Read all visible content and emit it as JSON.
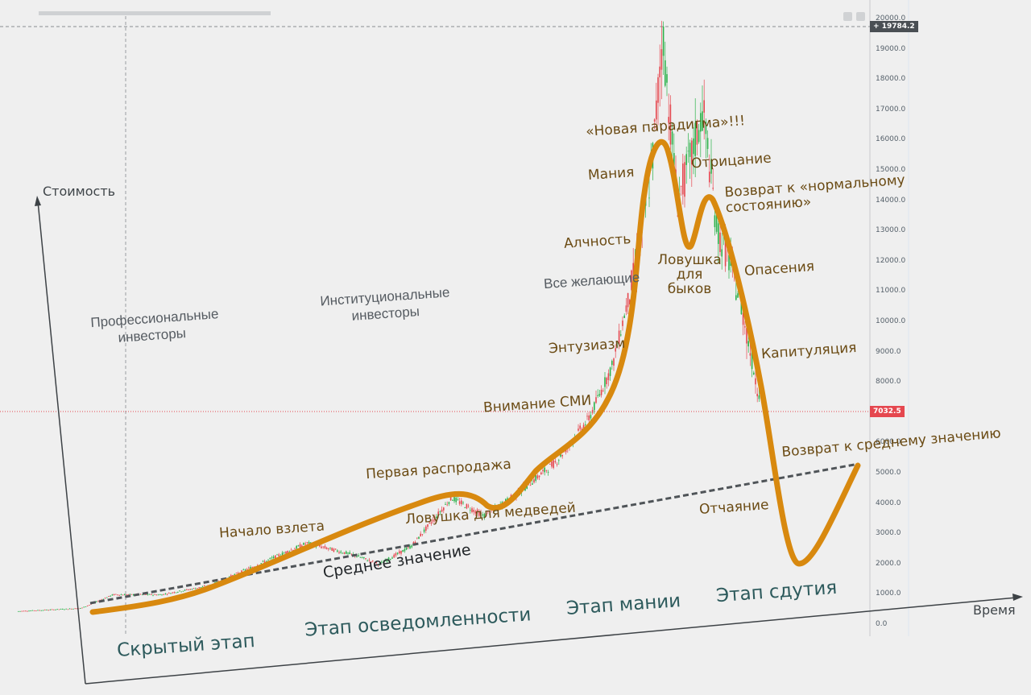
{
  "chart_data": {
    "type": "line",
    "ylim": [
      0,
      20000
    ],
    "y_ticks": [
      "0.0",
      "1000.0",
      "2000.0",
      "3000.0",
      "4000.0",
      "5000.0",
      "6000.0",
      "7000.0",
      "8000.0",
      "9000.0",
      "10000.0",
      "11000.0",
      "12000.0",
      "13000.0",
      "14000.0",
      "15000.0",
      "16000.0",
      "17000.0",
      "18000.0",
      "19000.0",
      "20000.0"
    ],
    "top_price": "19784.2",
    "current_price": "7032.5",
    "axis_labels": {
      "y": "Стоимость",
      "x": "Время"
    },
    "investor_groups": [
      "Профессиональные инвесторы",
      "Институциональные инвесторы",
      "Все желающие"
    ],
    "mean_line_label": "Среднее значение",
    "phases": [
      "Скрытый этап",
      "Этап осведомленности",
      "Этап мании",
      "Этап сдутия"
    ],
    "cycle_points": [
      {
        "label": "Начало взлета",
        "value": 2500
      },
      {
        "label": "Первая распродажа",
        "value": 4300
      },
      {
        "label": "Ловушка для медведей",
        "value": 3900
      },
      {
        "label": "Внимание СМИ",
        "value": 7000
      },
      {
        "label": "Энтузиазм",
        "value": 9200
      },
      {
        "label": "Алчность",
        "value": 13000
      },
      {
        "label": "Мания",
        "value": 15000
      },
      {
        "label": "«Новая парадигма»!!!",
        "value": 15900
      },
      {
        "label": "Ловушка для быков",
        "value": 12500
      },
      {
        "label": "Отрицание",
        "value": 14600
      },
      {
        "label": "Возврат к «нормальному состоянию»",
        "value": 14100
      },
      {
        "label": "Опасения",
        "value": 11400
      },
      {
        "label": "Капитуляция",
        "value": 8500
      },
      {
        "label": "Отчаяние",
        "value": 2000
      },
      {
        "label": "Возврат к среднему значению",
        "value": 5200
      }
    ],
    "colors": {
      "cycle_curve": "#d8890f",
      "candle_up": "#2bb24a",
      "candle_down": "#e5474f",
      "mean_line": "#4f5458",
      "axes": "#3d4246",
      "price_marker": "#e5474f",
      "top_price_marker": "#4a4f54"
    }
  }
}
